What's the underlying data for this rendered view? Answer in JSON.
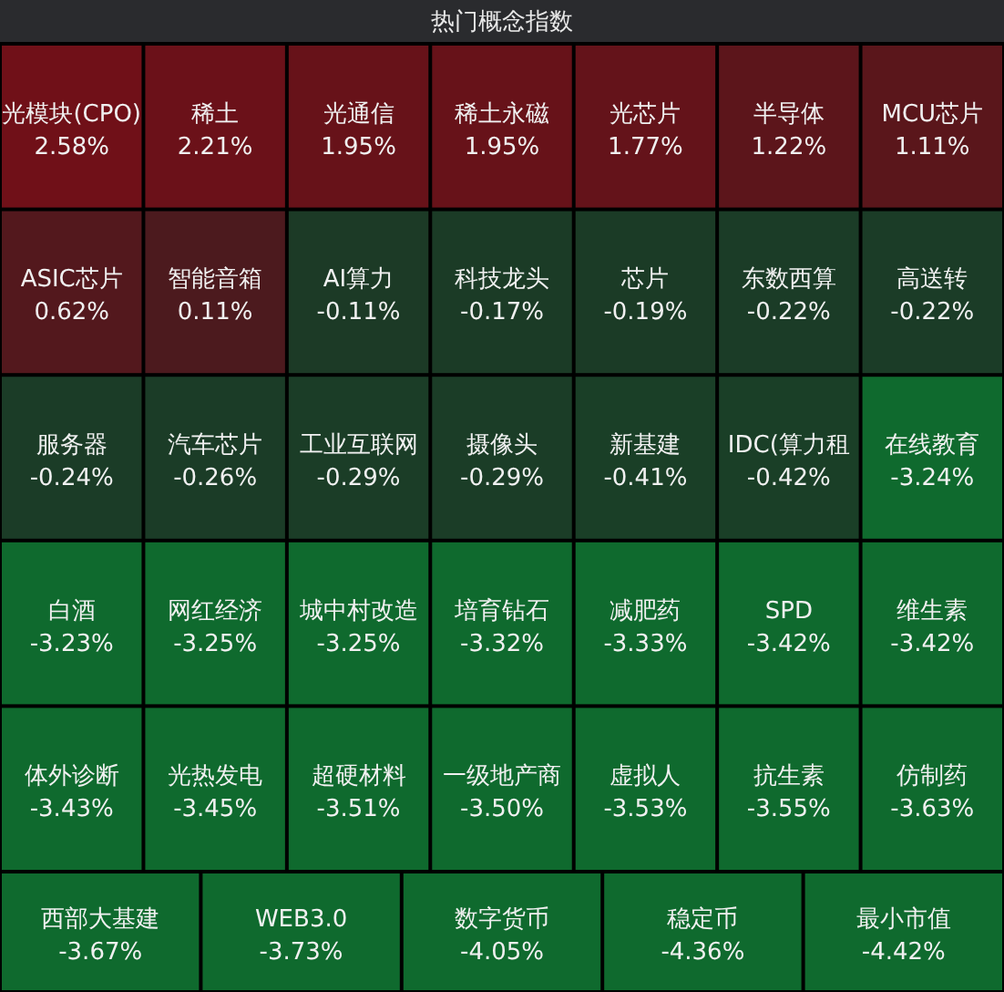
{
  "chart_data": {
    "type": "other",
    "title": "热门概念指数",
    "categories": [
      "光模块(CPO)",
      "稀土",
      "光通信",
      "稀土永磁",
      "光芯片",
      "半导体",
      "MCU芯片",
      "ASIC芯片",
      "智能音箱",
      "AI算力",
      "科技龙头",
      "芯片",
      "东数西算",
      "高送转",
      "服务器",
      "汽车芯片",
      "工业互联网",
      "摄像头",
      "新基建",
      "IDC(算力租",
      "在线教育",
      "白酒",
      "网红经济",
      "城中村改造",
      "培育钻石",
      "减肥药",
      "SPD",
      "维生素",
      "体外诊断",
      "光热发电",
      "超硬材料",
      "一级地产商",
      "虚拟人",
      "抗生素",
      "仿制药",
      "西部大基建",
      "WEB3.0",
      "数字货币",
      "稳定币",
      "最小市值"
    ],
    "values": [
      2.58,
      2.21,
      1.95,
      1.95,
      1.77,
      1.22,
      1.11,
      0.62,
      0.11,
      -0.11,
      -0.17,
      -0.19,
      -0.22,
      -0.22,
      -0.24,
      -0.26,
      -0.29,
      -0.29,
      -0.41,
      -0.42,
      -3.24,
      -3.23,
      -3.25,
      -3.25,
      -3.32,
      -3.33,
      -3.42,
      -3.42,
      -3.43,
      -3.45,
      -3.51,
      -3.5,
      -3.53,
      -3.55,
      -3.63,
      -3.67,
      -3.73,
      -4.05,
      -4.36,
      -4.42
    ],
    "value_labels": [
      "2.58%",
      "2.21%",
      "1.95%",
      "1.95%",
      "1.77%",
      "1.22%",
      "1.11%",
      "0.62%",
      "0.11%",
      "-0.11%",
      "-0.17%",
      "-0.19%",
      "-0.22%",
      "-0.22%",
      "-0.24%",
      "-0.26%",
      "-0.29%",
      "-0.29%",
      "-0.41%",
      "-0.42%",
      "-3.24%",
      "-3.23%",
      "-3.25%",
      "-3.25%",
      "-3.32%",
      "-3.33%",
      "-3.42%",
      "-3.42%",
      "-3.43%",
      "-3.45%",
      "-3.51%",
      "-3.50%",
      "-3.53%",
      "-3.55%",
      "-3.63%",
      "-3.67%",
      "-3.73%",
      "-4.05%",
      "-4.36%",
      "-4.42%"
    ]
  }
}
